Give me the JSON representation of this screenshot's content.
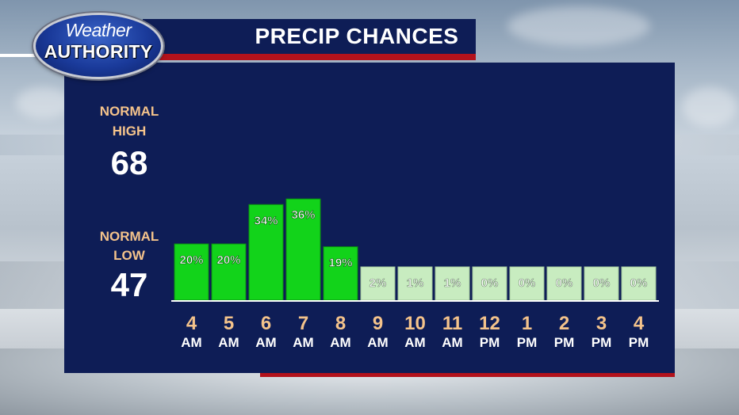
{
  "header": {
    "logo_line1": "Weather",
    "logo_line2": "AUTHORITY",
    "title": "PRECIP CHANCES"
  },
  "normals": {
    "high_label_1": "NORMAL",
    "high_label_2": "HIGH",
    "high_value": "68",
    "low_label_1": "NORMAL",
    "low_label_2": "LOW",
    "low_value": "47"
  },
  "colors": {
    "panel": "#0e1d56",
    "accent_red": "#b3121b",
    "bar_high": "#12d31a",
    "bar_low": "#c8ecc0",
    "tick_number": "#f4c38b"
  },
  "chart_data": {
    "type": "bar",
    "title": "PRECIP CHANCES",
    "categories": [
      {
        "hour": "4",
        "period": "AM"
      },
      {
        "hour": "5",
        "period": "AM"
      },
      {
        "hour": "6",
        "period": "AM"
      },
      {
        "hour": "7",
        "period": "AM"
      },
      {
        "hour": "8",
        "period": "AM"
      },
      {
        "hour": "9",
        "period": "AM"
      },
      {
        "hour": "10",
        "period": "AM"
      },
      {
        "hour": "11",
        "period": "AM"
      },
      {
        "hour": "12",
        "period": "PM"
      },
      {
        "hour": "1",
        "period": "PM"
      },
      {
        "hour": "2",
        "period": "PM"
      },
      {
        "hour": "3",
        "period": "PM"
      },
      {
        "hour": "4",
        "period": "PM"
      }
    ],
    "values": [
      20,
      20,
      34,
      36,
      19,
      2,
      1,
      1,
      0,
      0,
      0,
      0,
      0
    ],
    "value_labels": [
      "20%",
      "20%",
      "34%",
      "36%",
      "19%",
      "2%",
      "1%",
      "1%",
      "0%",
      "0%",
      "0%",
      "0%",
      "0%"
    ],
    "unit": "%",
    "ylim": [
      0,
      100
    ],
    "grid": false
  }
}
